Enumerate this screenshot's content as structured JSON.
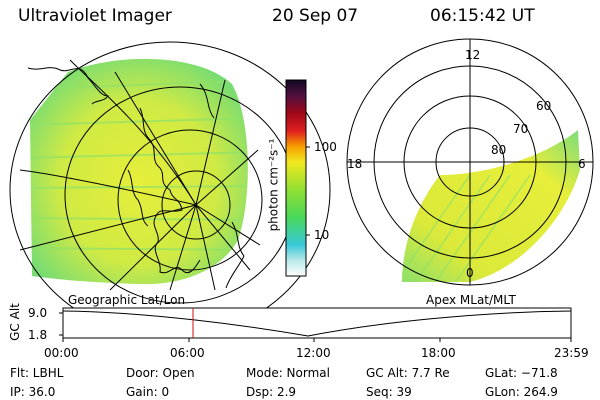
{
  "header": {
    "instrument": "Ultraviolet Imager",
    "date": "20 Sep 07",
    "time": "06:15:42 UT"
  },
  "colorbar": {
    "unit_label": "photon cm⁻²s⁻¹",
    "ticks": [
      "100",
      "10"
    ]
  },
  "polar_plot": {
    "mlt_labels": [
      "12",
      "18",
      "6",
      "0"
    ],
    "lat_labels": [
      "60",
      "70",
      "80"
    ]
  },
  "labels": {
    "left_panel": "Geographic Lat/Lon",
    "right_panel": "Apex MLat/MLT"
  },
  "altitude_plot": {
    "ylabel": "GC Alt",
    "yticks": [
      "9.0",
      "1.8"
    ],
    "xticks": [
      "00:00",
      "06:00",
      "12:00",
      "18:00",
      "23:59"
    ]
  },
  "info": {
    "flt": "Flt:  LBHL",
    "ip": "IP:  36.0",
    "door": "Door:  Open",
    "gain": "Gain:    0",
    "mode": "Mode:  Normal",
    "dsp": "Dsp:       2.9",
    "gcalt": "GC Alt:  7.7 Re",
    "seq": "Seq:  39",
    "glat": "GLat:  −71.8",
    "glon": "GLon:  264.9"
  },
  "colors": {
    "image_fill": "#d8ec3c",
    "image_green": "#8fe26a",
    "marker": "#d01010"
  }
}
